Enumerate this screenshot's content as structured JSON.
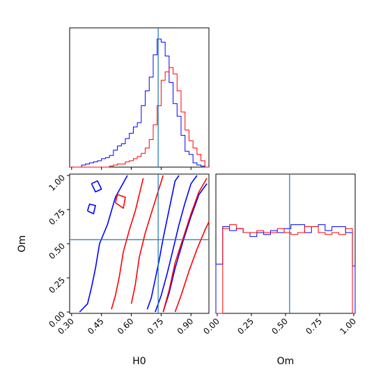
{
  "chart_data": {
    "type": "corner",
    "parameters": [
      "H0",
      "Om"
    ],
    "xlabel_H0": "H0",
    "xlabel_Om": "Om",
    "ylabel_Om": "Om",
    "truth": {
      "H0": 0.735,
      "Om": 0.53
    },
    "H0_ticks": [
      "0.30",
      "0.45",
      "0.60",
      "0.75",
      "0.90"
    ],
    "Om_ticks": [
      "0.00",
      "0.25",
      "0.50",
      "0.75",
      "1.00"
    ],
    "H0_tick_values": [
      0.3,
      0.45,
      0.6,
      0.75,
      0.9
    ],
    "Om_tick_values": [
      0.0,
      0.25,
      0.5,
      0.75,
      1.0
    ],
    "H0_range": [
      0.29,
      0.99
    ],
    "Om_range": [
      -0.01,
      1.01
    ],
    "series": [
      {
        "color": "#0000ff"
      },
      {
        "color": "#ff0000"
      }
    ],
    "hist_H0": {
      "bin_edges": [
        0.29,
        0.31,
        0.33,
        0.35,
        0.37,
        0.39,
        0.41,
        0.43,
        0.45,
        0.47,
        0.49,
        0.51,
        0.53,
        0.55,
        0.57,
        0.59,
        0.61,
        0.63,
        0.65,
        0.67,
        0.69,
        0.71,
        0.73,
        0.75,
        0.77,
        0.79,
        0.81,
        0.83,
        0.85,
        0.87,
        0.89,
        0.91,
        0.93,
        0.95,
        0.97,
        0.99
      ],
      "blue": [
        0,
        0,
        0,
        2,
        3,
        4,
        5,
        6,
        8,
        9,
        11,
        16,
        20,
        22,
        27,
        32,
        38,
        42,
        58,
        72,
        85,
        106,
        121,
        118,
        105,
        80,
        60,
        48,
        30,
        15,
        12,
        4,
        2,
        1,
        0
      ],
      "red": [
        0,
        0,
        0,
        0,
        0,
        0,
        0,
        0,
        0,
        0,
        1,
        2,
        3,
        3,
        5,
        6,
        8,
        10,
        13,
        18,
        26,
        40,
        58,
        82,
        90,
        94,
        88,
        72,
        52,
        35,
        25,
        18,
        12,
        6,
        0
      ]
    },
    "hist_Om": {
      "bin_edges": [
        -0.01,
        0.04,
        0.09,
        0.14,
        0.19,
        0.24,
        0.29,
        0.34,
        0.39,
        0.44,
        0.49,
        0.54,
        0.59,
        0.64,
        0.69,
        0.74,
        0.79,
        0.84,
        0.89,
        0.94,
        0.99,
        1.01
      ],
      "blue": [
        50,
        88,
        84,
        86,
        82,
        78,
        82,
        80,
        84,
        82,
        86,
        90,
        90,
        82,
        88,
        90,
        84,
        88,
        88,
        82,
        48
      ],
      "red": [
        0,
        86,
        90,
        86,
        82,
        82,
        84,
        82,
        82,
        86,
        82,
        80,
        82,
        88,
        88,
        82,
        80,
        82,
        80,
        86,
        0
      ]
    },
    "contours_blue": [
      [
        [
          0.34,
          0.0
        ],
        [
          0.38,
          0.06
        ],
        [
          0.4,
          0.18
        ],
        [
          0.42,
          0.32
        ],
        [
          0.44,
          0.5
        ],
        [
          0.48,
          0.64
        ],
        [
          0.5,
          0.74
        ],
        [
          0.52,
          0.84
        ],
        [
          0.55,
          0.92
        ],
        [
          0.58,
          1.0
        ]
      ],
      [
        [
          0.68,
          0.02
        ],
        [
          0.7,
          0.1
        ],
        [
          0.72,
          0.24
        ],
        [
          0.74,
          0.38
        ],
        [
          0.76,
          0.54
        ],
        [
          0.78,
          0.68
        ],
        [
          0.8,
          0.82
        ],
        [
          0.82,
          0.96
        ],
        [
          0.84,
          1.0
        ]
      ],
      [
        [
          0.72,
          0.0
        ],
        [
          0.75,
          0.12
        ],
        [
          0.78,
          0.28
        ],
        [
          0.81,
          0.46
        ],
        [
          0.84,
          0.64
        ],
        [
          0.87,
          0.8
        ],
        [
          0.9,
          0.94
        ],
        [
          0.93,
          1.0
        ]
      ],
      [
        [
          0.76,
          0.0
        ],
        [
          0.79,
          0.14
        ],
        [
          0.82,
          0.32
        ],
        [
          0.86,
          0.52
        ],
        [
          0.9,
          0.7
        ],
        [
          0.94,
          0.86
        ],
        [
          0.98,
          0.94
        ]
      ],
      [
        [
          0.4,
          0.94
        ],
        [
          0.42,
          0.88
        ],
        [
          0.45,
          0.9
        ],
        [
          0.43,
          0.96
        ],
        [
          0.4,
          0.94
        ]
      ],
      [
        [
          0.38,
          0.74
        ],
        [
          0.41,
          0.72
        ],
        [
          0.42,
          0.78
        ],
        [
          0.39,
          0.79
        ],
        [
          0.38,
          0.74
        ]
      ]
    ],
    "contours_red": [
      [
        [
          0.5,
          0.02
        ],
        [
          0.52,
          0.12
        ],
        [
          0.54,
          0.26
        ],
        [
          0.56,
          0.44
        ],
        [
          0.59,
          0.6
        ],
        [
          0.62,
          0.74
        ],
        [
          0.64,
          0.86
        ],
        [
          0.66,
          0.98
        ]
      ],
      [
        [
          0.6,
          0.06
        ],
        [
          0.62,
          0.2
        ],
        [
          0.64,
          0.4
        ],
        [
          0.67,
          0.58
        ],
        [
          0.7,
          0.72
        ],
        [
          0.73,
          0.86
        ],
        [
          0.76,
          1.0
        ]
      ],
      [
        [
          0.76,
          0.0
        ],
        [
          0.79,
          0.16
        ],
        [
          0.82,
          0.36
        ],
        [
          0.86,
          0.54
        ],
        [
          0.9,
          0.72
        ],
        [
          0.94,
          0.88
        ],
        [
          0.98,
          0.98
        ]
      ],
      [
        [
          0.82,
          0.0
        ],
        [
          0.85,
          0.12
        ],
        [
          0.89,
          0.3
        ],
        [
          0.93,
          0.46
        ],
        [
          0.97,
          0.6
        ],
        [
          0.99,
          0.66
        ]
      ],
      [
        [
          0.52,
          0.8
        ],
        [
          0.56,
          0.76
        ],
        [
          0.57,
          0.84
        ],
        [
          0.53,
          0.86
        ],
        [
          0.52,
          0.8
        ]
      ]
    ]
  }
}
